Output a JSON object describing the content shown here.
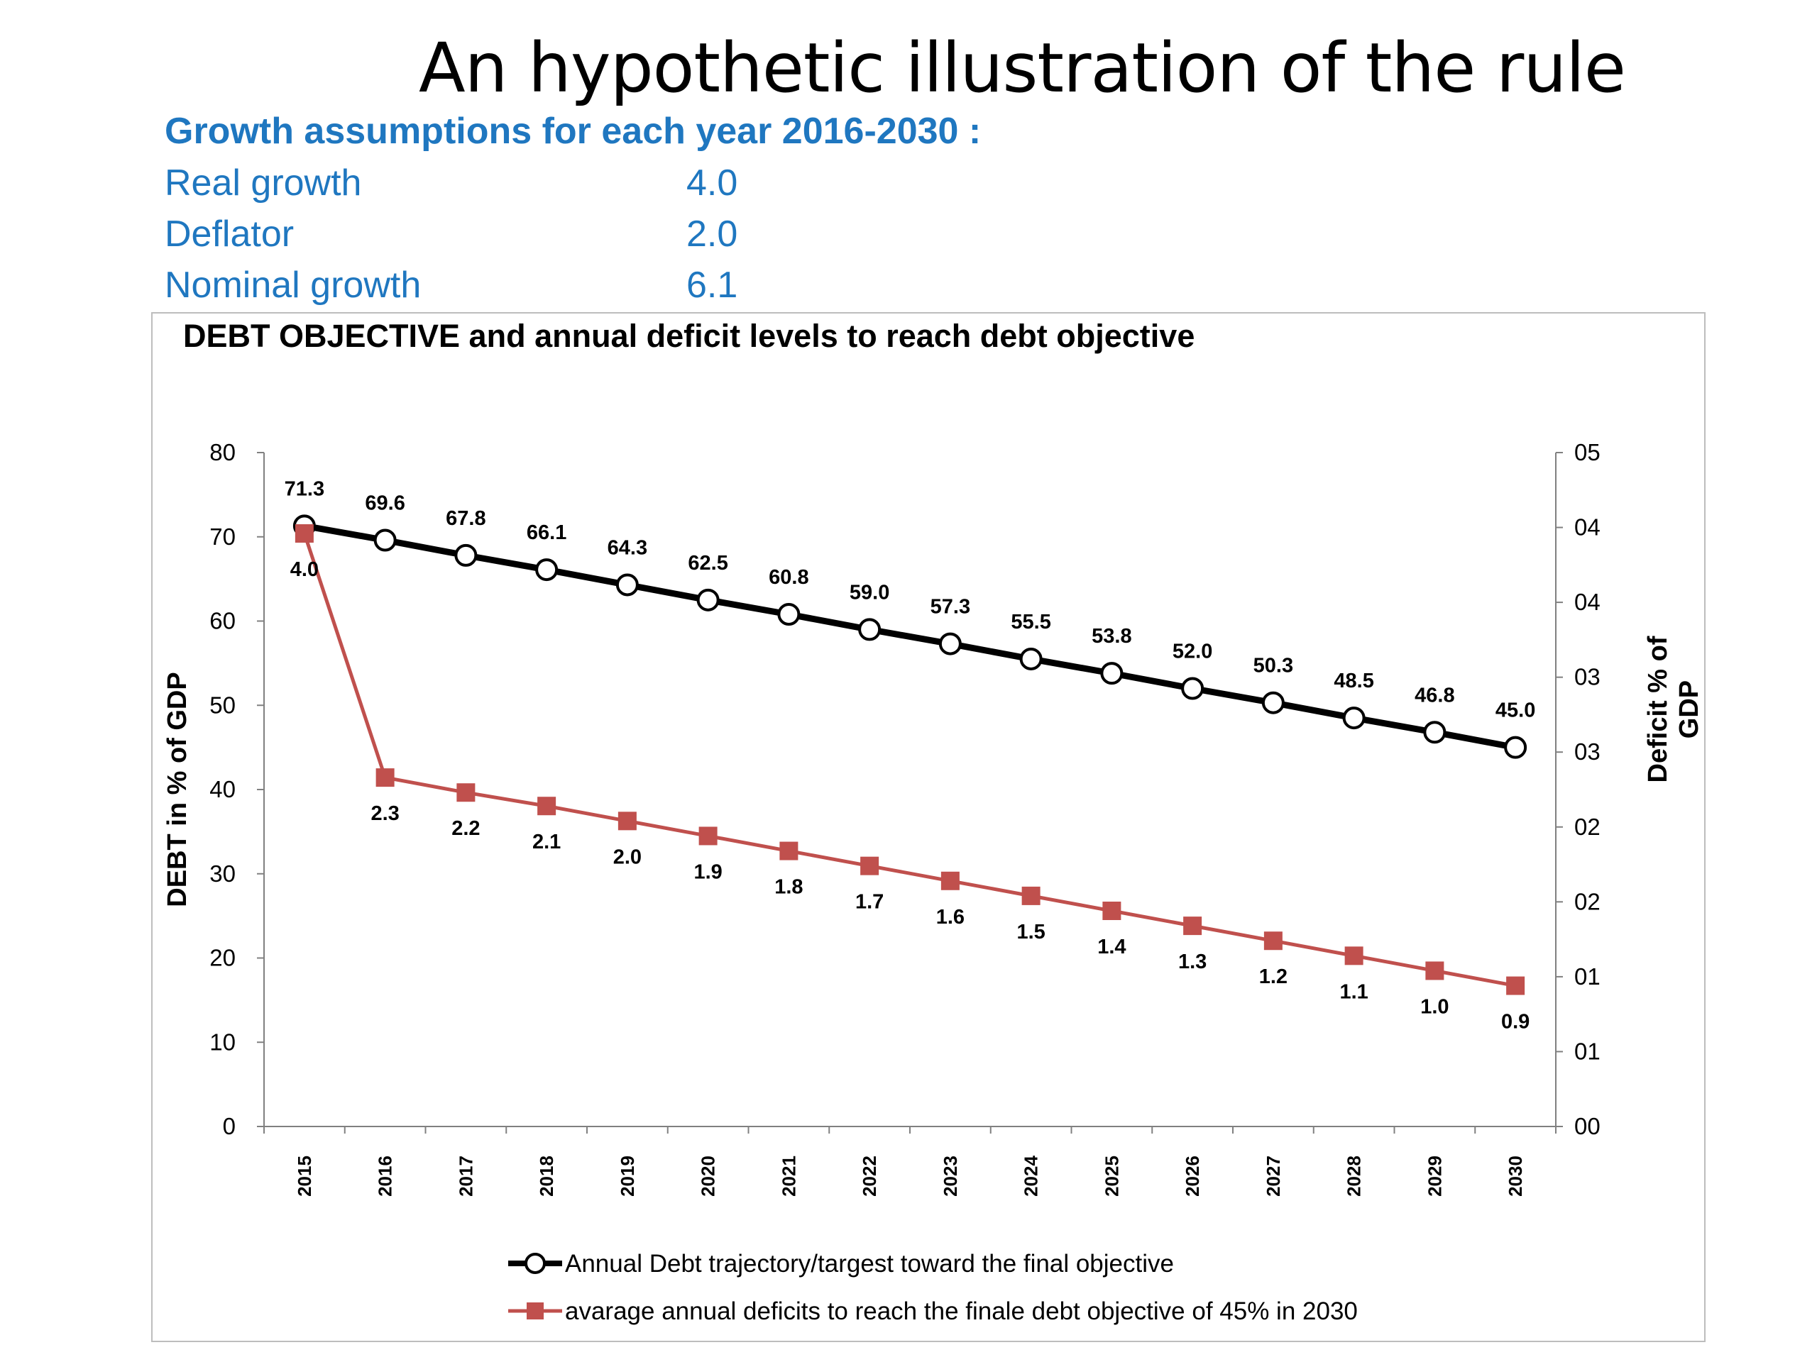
{
  "slide": {
    "title": "An hypothetic illustration of the rule"
  },
  "assumptions": {
    "heading": "Growth assumptions for each year 2016-2030 :",
    "rows": [
      {
        "label": "Real growth",
        "value": "4.0"
      },
      {
        "label": "Deflator",
        "value": "2.0"
      },
      {
        "label": "Nominal growth",
        "value": "6.1"
      }
    ]
  },
  "colors": {
    "assumption_text": "#1F77C0",
    "debt_line": "#000000",
    "deficit_line": "#C0504D"
  },
  "chart_data": {
    "type": "line",
    "title": "DEBT OBJECTIVE and annual deficit levels to reach debt objective",
    "x": [
      "2015",
      "2016",
      "2017",
      "2018",
      "2019",
      "2020",
      "2021",
      "2022",
      "2023",
      "2024",
      "2025",
      "2026",
      "2027",
      "2028",
      "2029",
      "2030"
    ],
    "ylabel_left": "DEBT in % of GDP",
    "ylabel_right": [
      "Deficit  % of",
      "GDP"
    ],
    "ylim_left": [
      0,
      80
    ],
    "yticks_left": [
      "0",
      "10",
      "20",
      "30",
      "40",
      "50",
      "60",
      "70",
      "80"
    ],
    "ylim_right": [
      0,
      4.5
    ],
    "yticks_right": [
      "00",
      "01",
      "01",
      "02",
      "02",
      "03",
      "03",
      "04",
      "04",
      "05"
    ],
    "grid": false,
    "legend_position": "bottom",
    "series": [
      {
        "name": "Annual Debt trajectory/targest toward the final objective",
        "axis": "left",
        "marker": "circle-open",
        "values": [
          71.3,
          69.6,
          67.8,
          66.1,
          64.3,
          62.5,
          60.8,
          59.0,
          57.3,
          55.5,
          53.8,
          52.0,
          50.3,
          48.5,
          46.8,
          45.0
        ],
        "labels": [
          "71.3",
          "69.6",
          "67.8",
          "66.1",
          "64.3",
          "62.5",
          "60.8",
          "59.0",
          "57.3",
          "55.5",
          "53.8",
          "52.0",
          "50.3",
          "48.5",
          "46.8",
          "45.0"
        ]
      },
      {
        "name": "avarage annual deficits to reach the finale debt objective of 45% in 2030",
        "axis": "right",
        "marker": "square",
        "values": [
          3.96,
          2.33,
          2.23,
          2.14,
          2.04,
          1.94,
          1.84,
          1.74,
          1.64,
          1.54,
          1.44,
          1.34,
          1.24,
          1.14,
          1.04,
          0.94
        ],
        "labels": [
          "4.0",
          "2.3",
          "2.2",
          "2.1",
          "2.0",
          "1.9",
          "1.8",
          "1.7",
          "1.6",
          "1.5",
          "1.4",
          "1.3",
          "1.2",
          "1.1",
          "1.0",
          "0.9"
        ]
      }
    ]
  }
}
